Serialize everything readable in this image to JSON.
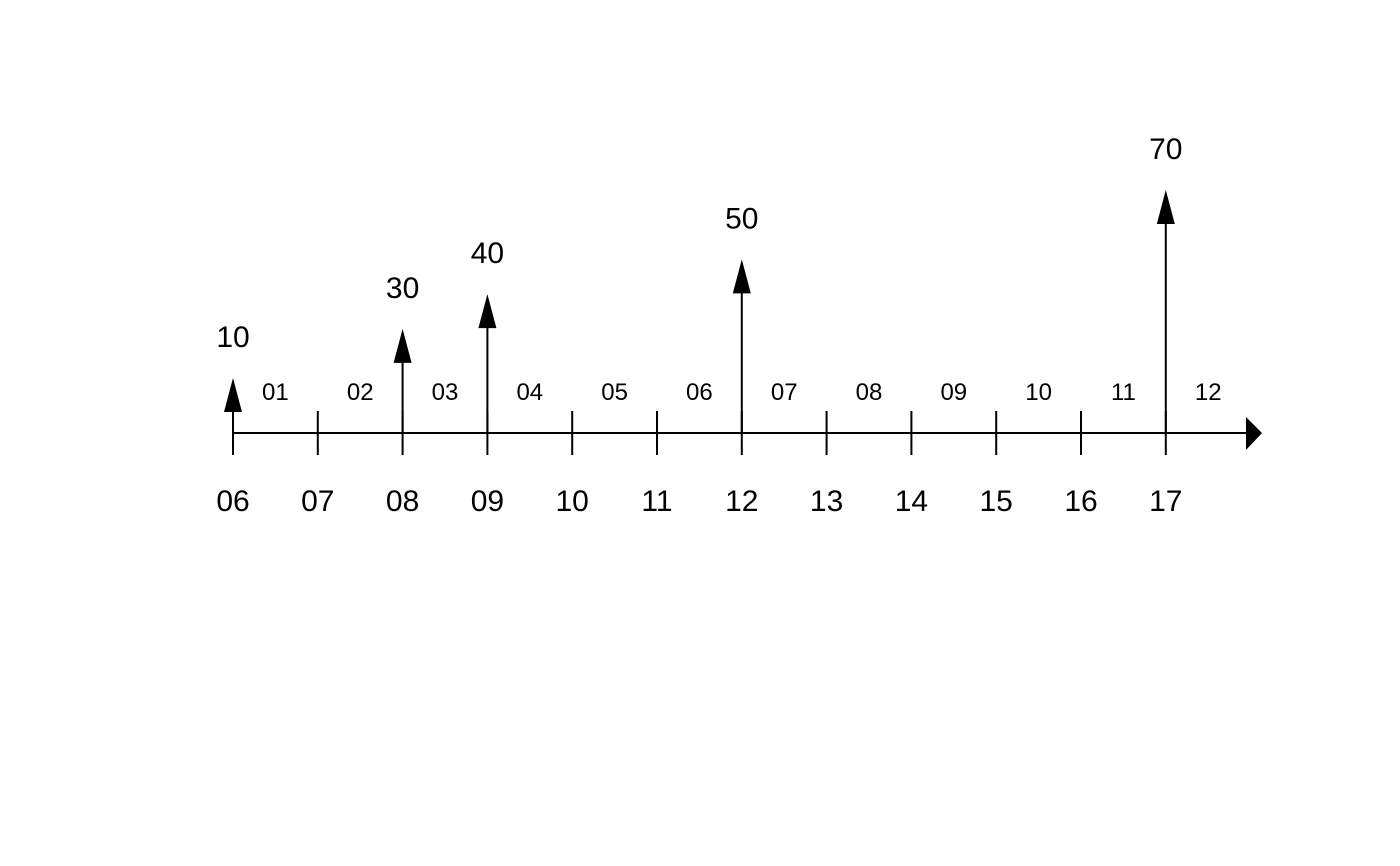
{
  "diagram": {
    "type": "cash-flow-timeline",
    "colors": {
      "ink": "#000000",
      "background": "#ffffff"
    },
    "year_ticks": [
      "06",
      "07",
      "08",
      "09",
      "10",
      "11",
      "12",
      "13",
      "14",
      "15",
      "16",
      "17"
    ],
    "period_labels": [
      "01",
      "02",
      "03",
      "04",
      "05",
      "06",
      "07",
      "08",
      "09",
      "10",
      "11",
      "12"
    ],
    "cash_flows": [
      {
        "at": "06",
        "value": 10,
        "label": "10"
      },
      {
        "at": "08",
        "value": 30,
        "label": "30"
      },
      {
        "at": "09",
        "value": 40,
        "label": "40"
      },
      {
        "at": "12",
        "value": 50,
        "label": "50"
      },
      {
        "at": "17",
        "value": 70,
        "label": "70"
      }
    ]
  }
}
